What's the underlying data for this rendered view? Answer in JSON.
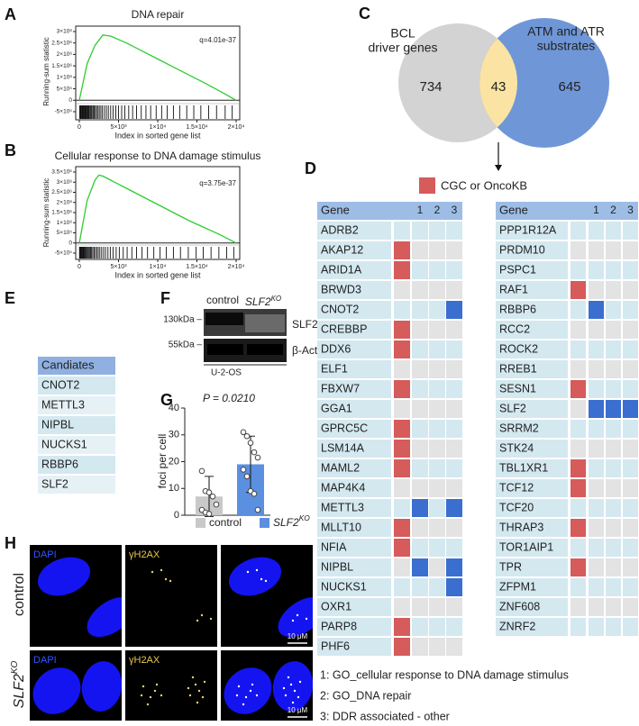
{
  "panel_a": {
    "letter": "A",
    "type": "line",
    "title": "DNA repair",
    "annotation": "q=4.01e-37",
    "ylabel": "Running-sum statistic",
    "xlabel": "Index in sorted gene list",
    "color": "#2ecc2e",
    "x": [
      0,
      1000,
      2000,
      3000,
      4000,
      6000,
      8000,
      10000,
      12000,
      14000,
      16000,
      18000,
      20000
    ],
    "values": [
      0,
      1600000,
      2400000,
      2850000,
      2800000,
      2500000,
      2150000,
      1800000,
      1450000,
      1100000,
      750000,
      380000,
      0
    ],
    "hits": [
      50,
      120,
      200,
      300,
      380,
      450,
      520,
      610,
      700,
      790,
      880,
      960,
      1050,
      1150,
      1250,
      1380,
      1500,
      1620,
      1760,
      1900,
      2050,
      2200,
      2380,
      2550,
      2750,
      2950,
      3200,
      3450,
      3700,
      4000,
      4300,
      4650,
      5000,
      5400,
      5800,
      6300,
      6800,
      7300,
      7900,
      8500,
      9100,
      9800,
      10500,
      11200,
      12000,
      12800,
      13700,
      14600,
      15500,
      16500,
      17500,
      18600,
      19500
    ],
    "xlim": [
      0,
      20000
    ],
    "ylim": [
      -500000,
      3000000
    ],
    "xticks": [
      0,
      {
        "value": 5000,
        "label": "5×10³"
      },
      {
        "value": 10000,
        "label": "1×10⁴"
      },
      {
        "value": 15000,
        "label": "1.5×10⁴"
      },
      {
        "value": 20000,
        "label": "2×10⁴"
      }
    ],
    "yticks": [
      {
        "value": -500000,
        "label": "-5×10⁵"
      },
      0,
      {
        "value": 500000,
        "label": "5×10⁵"
      },
      {
        "value": 1000000,
        "label": "1×10⁶"
      },
      {
        "value": 1500000,
        "label": "1.5×10⁶"
      },
      {
        "value": 2000000,
        "label": "2×10⁶"
      },
      {
        "value": 2500000,
        "label": "2.5×10⁶"
      },
      {
        "value": 3000000,
        "label": "3×10⁶"
      }
    ]
  },
  "panel_b": {
    "letter": "B",
    "type": "line",
    "title": "Cellular response to DNA damage stimulus",
    "annotation": "q=3.75e-37",
    "ylabel": "Running-sum statistic",
    "xlabel": "Index in sorted gene list",
    "color": "#2ecc2e",
    "x": [
      0,
      1000,
      2000,
      2500,
      3000,
      4000,
      6000,
      8000,
      10000,
      12000,
      14000,
      16000,
      18000,
      20000
    ],
    "values": [
      0,
      2100000,
      3100000,
      3350000,
      3300000,
      3100000,
      2700000,
      2300000,
      1900000,
      1500000,
      1100000,
      750000,
      400000,
      0
    ],
    "hits": [
      30,
      90,
      150,
      230,
      310,
      400,
      480,
      560,
      650,
      740,
      840,
      950,
      1060,
      1180,
      1300,
      1430,
      1570,
      1720,
      1880,
      2050,
      2230,
      2420,
      2620,
      2850,
      3100,
      3350,
      3650,
      3950,
      4300,
      4700,
      5100,
      5600,
      6100,
      6700,
      7300,
      8000,
      8700,
      9500,
      10300,
      11100,
      12000,
      12900,
      13900,
      14900,
      15800,
      16800,
      17800,
      18800,
      19700
    ],
    "xlim": [
      0,
      20000
    ],
    "ylim": [
      -500000,
      3500000
    ],
    "xticks": [
      0,
      {
        "value": 5000,
        "label": "5×10³"
      },
      {
        "value": 10000,
        "label": "1×10⁴"
      },
      {
        "value": 15000,
        "label": "1.5×10⁴"
      },
      {
        "value": 20000,
        "label": "2×10⁴"
      }
    ],
    "yticks": [
      {
        "value": -500000,
        "label": "-5×10⁵"
      },
      0,
      {
        "value": 500000,
        "label": "5×10⁵"
      },
      {
        "value": 1000000,
        "label": "1×10⁶"
      },
      {
        "value": 1500000,
        "label": "1.5×10⁶"
      },
      {
        "value": 2000000,
        "label": "2×10⁶"
      },
      {
        "value": 2500000,
        "label": "2.5×10⁶"
      },
      {
        "value": 3000000,
        "label": "3×10⁶"
      },
      {
        "value": 3500000,
        "label": "3.5×10⁶"
      }
    ]
  },
  "panel_c": {
    "letter": "C",
    "left": {
      "lines": [
        "BCL",
        "driver genes"
      ],
      "count": "734",
      "color": "#d3d3d3"
    },
    "right": {
      "lines": [
        "ATM and ATR",
        "substrates"
      ],
      "count": "645",
      "color": "#6f97d8"
    },
    "overlap": {
      "count": "43",
      "color": "#fbe3a3"
    }
  },
  "panel_d": {
    "letter": "D",
    "legend": "CGC or OncoKB",
    "cgc_color": "#d65b5b",
    "set_color": "#3a6fd0",
    "header": [
      "Gene",
      "1",
      "2",
      "3"
    ],
    "tables": [
      [
        {
          "gene": "ADRB2",
          "flags": [
            false,
            false,
            false,
            false
          ]
        },
        {
          "gene": "AKAP12",
          "flags": [
            true,
            false,
            false,
            false
          ]
        },
        {
          "gene": "ARID1A",
          "flags": [
            true,
            false,
            false,
            false
          ]
        },
        {
          "gene": "BRWD3",
          "flags": [
            false,
            false,
            false,
            false
          ]
        },
        {
          "gene": "CNOT2",
          "flags": [
            false,
            false,
            false,
            true
          ]
        },
        {
          "gene": "CREBBP",
          "flags": [
            true,
            false,
            false,
            false
          ]
        },
        {
          "gene": "DDX6",
          "flags": [
            true,
            false,
            false,
            false
          ]
        },
        {
          "gene": "ELF1",
          "flags": [
            false,
            false,
            false,
            false
          ]
        },
        {
          "gene": "FBXW7",
          "flags": [
            true,
            false,
            false,
            false
          ]
        },
        {
          "gene": "GGA1",
          "flags": [
            false,
            false,
            false,
            false
          ]
        },
        {
          "gene": "GPRC5C",
          "flags": [
            true,
            false,
            false,
            false
          ]
        },
        {
          "gene": "LSM14A",
          "flags": [
            true,
            false,
            false,
            false
          ]
        },
        {
          "gene": "MAML2",
          "flags": [
            true,
            false,
            false,
            false
          ]
        },
        {
          "gene": "MAP4K4",
          "flags": [
            false,
            false,
            false,
            false
          ]
        },
        {
          "gene": "METTL3",
          "flags": [
            false,
            true,
            false,
            true
          ]
        },
        {
          "gene": "MLLT10",
          "flags": [
            true,
            false,
            false,
            false
          ]
        },
        {
          "gene": "NFIA",
          "flags": [
            true,
            false,
            false,
            false
          ]
        },
        {
          "gene": "NIPBL",
          "flags": [
            false,
            true,
            false,
            true
          ]
        },
        {
          "gene": "NUCKS1",
          "flags": [
            false,
            false,
            false,
            true
          ]
        },
        {
          "gene": "OXR1",
          "flags": [
            false,
            false,
            false,
            false
          ]
        },
        {
          "gene": "PARP8",
          "flags": [
            true,
            false,
            false,
            false
          ]
        },
        {
          "gene": "PHF6",
          "flags": [
            true,
            false,
            false,
            false
          ]
        }
      ],
      [
        {
          "gene": "PPP1R12A",
          "flags": [
            false,
            false,
            false,
            false
          ]
        },
        {
          "gene": "PRDM10",
          "flags": [
            false,
            false,
            false,
            false
          ]
        },
        {
          "gene": "PSPC1",
          "flags": [
            false,
            false,
            false,
            false
          ]
        },
        {
          "gene": "RAF1",
          "flags": [
            true,
            false,
            false,
            false
          ]
        },
        {
          "gene": "RBBP6",
          "flags": [
            false,
            true,
            false,
            false
          ]
        },
        {
          "gene": "RCC2",
          "flags": [
            false,
            false,
            false,
            false
          ]
        },
        {
          "gene": "ROCK2",
          "flags": [
            false,
            false,
            false,
            false
          ]
        },
        {
          "gene": "RREB1",
          "flags": [
            false,
            false,
            false,
            false
          ]
        },
        {
          "gene": "SESN1",
          "flags": [
            true,
            false,
            false,
            false
          ]
        },
        {
          "gene": "SLF2",
          "flags": [
            false,
            true,
            true,
            true
          ]
        },
        {
          "gene": "SRRM2",
          "flags": [
            false,
            false,
            false,
            false
          ]
        },
        {
          "gene": "STK24",
          "flags": [
            false,
            false,
            false,
            false
          ]
        },
        {
          "gene": "TBL1XR1",
          "flags": [
            true,
            false,
            false,
            false
          ]
        },
        {
          "gene": "TCF12",
          "flags": [
            true,
            false,
            false,
            false
          ]
        },
        {
          "gene": "TCF20",
          "flags": [
            false,
            false,
            false,
            false
          ]
        },
        {
          "gene": "THRAP3",
          "flags": [
            true,
            false,
            false,
            false
          ]
        },
        {
          "gene": "TOR1AIP1",
          "flags": [
            false,
            false,
            false,
            false
          ]
        },
        {
          "gene": "TPR",
          "flags": [
            true,
            false,
            false,
            false
          ]
        },
        {
          "gene": "ZFPM1",
          "flags": [
            false,
            false,
            false,
            false
          ]
        },
        {
          "gene": "ZNF608",
          "flags": [
            false,
            false,
            false,
            false
          ]
        },
        {
          "gene": "ZNRF2",
          "flags": [
            false,
            false,
            false,
            false
          ]
        }
      ]
    ],
    "footnotes": [
      "1: GO_cellular response to DNA damage stimulus",
      "2: GO_DNA repair",
      "3: DDR associated - other"
    ]
  },
  "panel_e": {
    "letter": "E",
    "header": "Candiates",
    "rows": [
      "CNOT2",
      "METTL3",
      "NIPBL",
      "NUCKS1",
      "RBBP6",
      "SLF2"
    ]
  },
  "panel_f": {
    "letter": "F",
    "lane_control": "control",
    "lane_ko": {
      "text": "SLF2",
      "sup": "KO"
    },
    "markers": [
      "130kDa –",
      "55kDa –"
    ],
    "bands": [
      "SLF2",
      "β-Actin"
    ],
    "cell_line": "U-2-OS"
  },
  "panel_g": {
    "letter": "G",
    "type": "bar",
    "ylabel": "foci per cell",
    "annotation": "P = 0.0210",
    "ylim": [
      0,
      40
    ],
    "yticks": [
      0,
      10,
      20,
      30,
      40
    ],
    "series": [
      {
        "name": {
          "text": "control"
        },
        "color": "#c9c9c9",
        "value": 7,
        "error": 7.5,
        "points": [
          16.5,
          9,
          8.5,
          7,
          4,
          2,
          1,
          0.5
        ]
      },
      {
        "name": {
          "text": "SLF2",
          "sup": "KO"
        },
        "color": "#5b8fe0",
        "value": 19,
        "error": 10.5,
        "points": [
          31,
          29.5,
          27,
          23.5,
          21.5,
          17,
          14.5,
          9,
          8,
          2
        ]
      }
    ]
  },
  "panel_h": {
    "letter": "H",
    "channels": [
      "DAPI",
      "γH2AX"
    ],
    "row_control": "control",
    "row_ko": {
      "text": "SLF2",
      "sup": "KO"
    },
    "scale_bar": "10 μM"
  }
}
